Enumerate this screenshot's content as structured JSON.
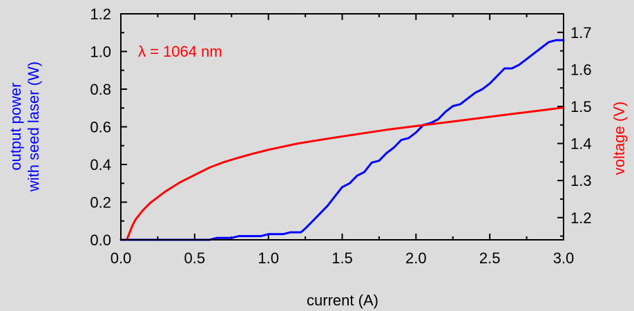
{
  "chart_data": {
    "type": "line",
    "xlabel": "current (A)",
    "ylabel_left": [
      "output power",
      "with seed laser (W)"
    ],
    "ylabel_right": "voltage (V)",
    "annotation": "λ = 1064 nm",
    "xlim": [
      0,
      3.0
    ],
    "ylim_left": [
      0,
      1.2
    ],
    "ylim_right": [
      1.14,
      1.75
    ],
    "x_ticks": [
      "0.0",
      "0.5",
      "1.0",
      "1.5",
      "2.0",
      "2.5",
      "3.0"
    ],
    "y_left_ticks": [
      "0.0",
      "0.2",
      "0.4",
      "0.6",
      "0.8",
      "1.0",
      "1.2"
    ],
    "y_right_ticks": [
      "1.2",
      "1.3",
      "1.4",
      "1.5",
      "1.6",
      "1.7"
    ],
    "grid": false,
    "colors": {
      "power": "#0000ff",
      "voltage": "#ff0000",
      "axes": "#000000",
      "background": "#dcdcdc"
    },
    "series": [
      {
        "axis": "left",
        "color": "#0000ff",
        "x": [
          0.0,
          0.6,
          0.65,
          0.75,
          0.8,
          0.95,
          1.0,
          1.1,
          1.15,
          1.22,
          1.25,
          1.3,
          1.35,
          1.4,
          1.45,
          1.5,
          1.55,
          1.6,
          1.65,
          1.7,
          1.75,
          1.8,
          1.85,
          1.9,
          1.95,
          2.0,
          2.05,
          2.1,
          2.15,
          2.2,
          2.25,
          2.3,
          2.35,
          2.4,
          2.45,
          2.5,
          2.55,
          2.6,
          2.65,
          2.7,
          2.75,
          2.8,
          2.85,
          2.9,
          2.95,
          3.0
        ],
        "y": [
          0.0,
          0.0,
          0.01,
          0.01,
          0.02,
          0.02,
          0.03,
          0.03,
          0.04,
          0.04,
          0.06,
          0.1,
          0.14,
          0.18,
          0.23,
          0.28,
          0.3,
          0.34,
          0.36,
          0.41,
          0.42,
          0.46,
          0.49,
          0.53,
          0.54,
          0.57,
          0.61,
          0.62,
          0.64,
          0.68,
          0.71,
          0.72,
          0.75,
          0.78,
          0.8,
          0.83,
          0.87,
          0.91,
          0.91,
          0.93,
          0.96,
          0.99,
          1.02,
          1.05,
          1.06,
          1.06
        ]
      },
      {
        "axis": "right",
        "color": "#ff0000",
        "x": [
          0.04,
          0.06,
          0.08,
          0.1,
          0.15,
          0.2,
          0.3,
          0.4,
          0.5,
          0.6,
          0.7,
          0.8,
          0.9,
          1.0,
          1.2,
          1.4,
          1.6,
          1.8,
          2.0,
          2.2,
          2.4,
          2.6,
          2.8,
          3.0
        ],
        "y": [
          1.14,
          1.16,
          1.18,
          1.195,
          1.22,
          1.24,
          1.27,
          1.295,
          1.315,
          1.335,
          1.35,
          1.362,
          1.373,
          1.383,
          1.4,
          1.413,
          1.425,
          1.437,
          1.447,
          1.457,
          1.467,
          1.477,
          1.487,
          1.497
        ]
      }
    ]
  }
}
